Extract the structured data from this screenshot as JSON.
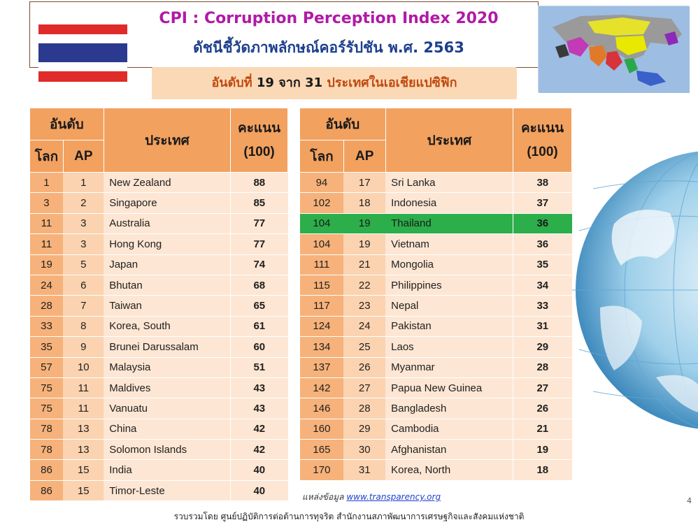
{
  "header": {
    "title_en": "CPI : Corruption Perception Index 2020",
    "title_th": "ดัชนีชี้วัดภาพลักษณ์คอร์รัปชัน พ.ศ. 2563",
    "rank_prefix": "อันดับที่",
    "rank_value": "19",
    "rank_mid": "จาก",
    "rank_total": "31",
    "rank_suffix": "ประเทศในเอเชียแปซิฟิก"
  },
  "table_headers": {
    "rank": "อันดับ",
    "world": "โลก",
    "ap": "AP",
    "country": "ประเทศ",
    "score": "คะแนน",
    "score_max": "(100)"
  },
  "left_rows": [
    {
      "world": "1",
      "ap": "1",
      "country": "New Zealand",
      "score": "88"
    },
    {
      "world": "3",
      "ap": "2",
      "country": "Singapore",
      "score": "85"
    },
    {
      "world": "11",
      "ap": "3",
      "country": "Australia",
      "score": "77"
    },
    {
      "world": "11",
      "ap": "3",
      "country": "Hong Kong",
      "score": "77"
    },
    {
      "world": "19",
      "ap": "5",
      "country": "Japan",
      "score": "74"
    },
    {
      "world": "24",
      "ap": "6",
      "country": "Bhutan",
      "score": "68"
    },
    {
      "world": "28",
      "ap": "7",
      "country": "Taiwan",
      "score": "65"
    },
    {
      "world": "33",
      "ap": "8",
      "country": "Korea, South",
      "score": "61"
    },
    {
      "world": "35",
      "ap": "9",
      "country": "Brunei Darussalam",
      "score": "60"
    },
    {
      "world": "57",
      "ap": "10",
      "country": "Malaysia",
      "score": "51"
    },
    {
      "world": "75",
      "ap": "11",
      "country": "Maldives",
      "score": "43"
    },
    {
      "world": "75",
      "ap": "11",
      "country": "Vanuatu",
      "score": "43"
    },
    {
      "world": "78",
      "ap": "13",
      "country": "China",
      "score": "42"
    },
    {
      "world": "78",
      "ap": "13",
      "country": "Solomon Islands",
      "score": "42"
    },
    {
      "world": "86",
      "ap": "15",
      "country": "India",
      "score": "40"
    },
    {
      "world": "86",
      "ap": "15",
      "country": "Timor-Leste",
      "score": "40"
    }
  ],
  "right_rows": [
    {
      "world": "94",
      "ap": "17",
      "country": "Sri Lanka",
      "score": "38"
    },
    {
      "world": "102",
      "ap": "18",
      "country": "Indonesia",
      "score": "37"
    },
    {
      "world": "104",
      "ap": "19",
      "country": "Thailand",
      "score": "36",
      "highlight": true
    },
    {
      "world": "104",
      "ap": "19",
      "country": "Vietnam",
      "score": "36"
    },
    {
      "world": "111",
      "ap": "21",
      "country": "Mongolia",
      "score": "35"
    },
    {
      "world": "115",
      "ap": "22",
      "country": "Philippines",
      "score": "34"
    },
    {
      "world": "117",
      "ap": "23",
      "country": "Nepal",
      "score": "33"
    },
    {
      "world": "124",
      "ap": "24",
      "country": "Pakistan",
      "score": "31"
    },
    {
      "world": "134",
      "ap": "25",
      "country": "Laos",
      "score": "29"
    },
    {
      "world": "137",
      "ap": "26",
      "country": "Myanmar",
      "score": "28"
    },
    {
      "world": "142",
      "ap": "27",
      "country": "Papua New Guinea",
      "score": "27"
    },
    {
      "world": "146",
      "ap": "28",
      "country": "Bangladesh",
      "score": "26"
    },
    {
      "world": "160",
      "ap": "29",
      "country": "Cambodia",
      "score": "21"
    },
    {
      "world": "165",
      "ap": "30",
      "country": "Afghanistan",
      "score": "19"
    },
    {
      "world": "170",
      "ap": "31",
      "country": "Korea, North",
      "score": "18"
    }
  ],
  "source": {
    "label": "แหล่งข้อมูล",
    "link": "www.transparency.org"
  },
  "page_number": "4",
  "footer": "รวบรวมโดย ศูนย์ปฏิบัติการต่อต้านการทุจริต สำนักงานสภาพัฒนาการเศรษฐกิจและสังคมแห่งชาติ",
  "colors": {
    "header_orange": "#f2a15f",
    "highlight_green": "#2cae4a",
    "title_magenta": "#b01aa7",
    "title_blue": "#1e3f8f"
  }
}
